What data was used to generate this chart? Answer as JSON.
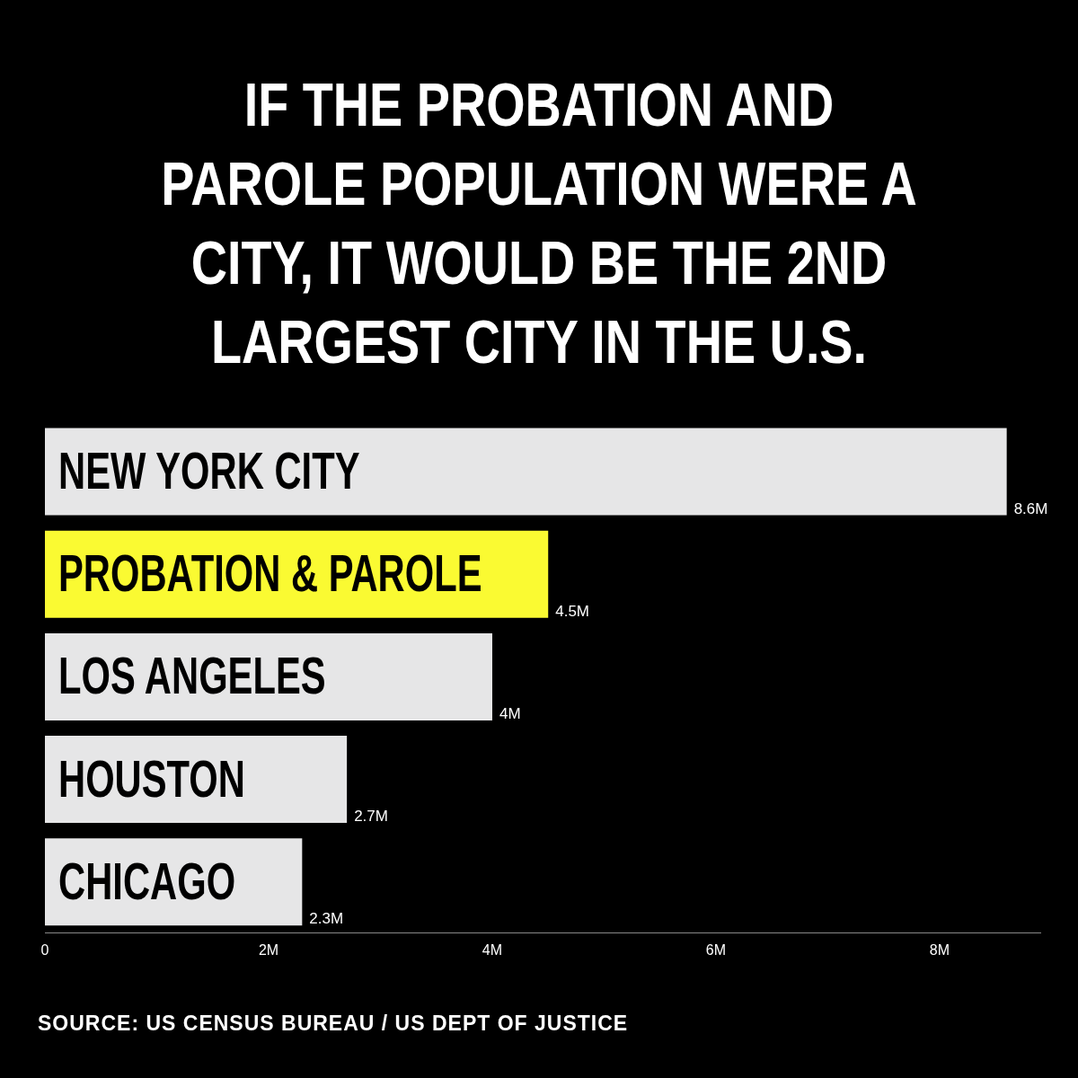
{
  "chart_data": {
    "type": "bar",
    "orientation": "horizontal",
    "title": "IF THE PROBATION AND PAROLE POPULATION WERE A CITY, IT WOULD BE THE 2ND LARGEST CITY IN THE U.S.",
    "categories": [
      "NEW YORK CITY",
      "PROBATION & PAROLE",
      "LOS ANGELES",
      "HOUSTON",
      "CHICAGO"
    ],
    "values": [
      8.6,
      4.5,
      4,
      2.7,
      2.3
    ],
    "value_labels": [
      "8.6M",
      "4.5M",
      "4M",
      "2.7M",
      "2.3M"
    ],
    "colors": [
      "#e6e6e7",
      "#fafa32",
      "#e6e6e7",
      "#e6e6e7",
      "#e6e6e7"
    ],
    "xlim": [
      0,
      8.9
    ],
    "xticks": [
      0,
      {
        "value": 2,
        "label": "2M"
      },
      {
        "value": 4,
        "label": "4M"
      },
      {
        "value": 6,
        "label": "6M"
      },
      {
        "value": 8,
        "label": "8M"
      }
    ],
    "grid": false,
    "legend": false,
    "annotations": [
      "SOURCE: US CENSUS BUREAU / US DEPT OF JUSTICE"
    ]
  }
}
